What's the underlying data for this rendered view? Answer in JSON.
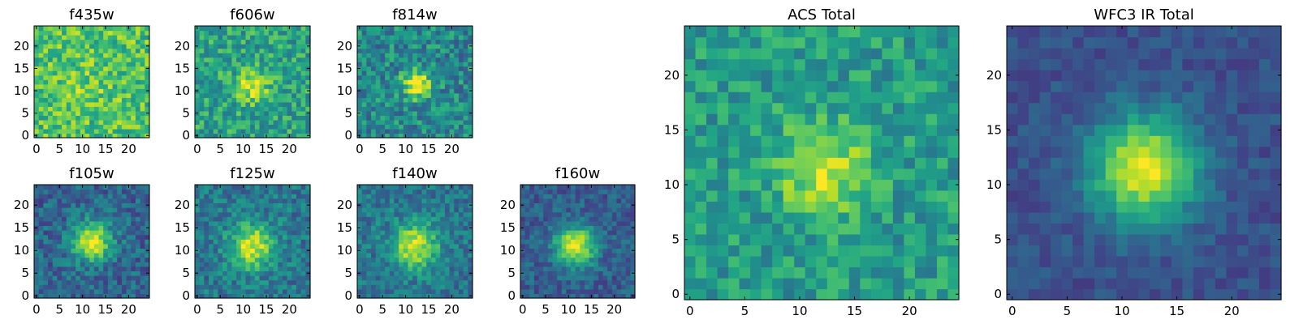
{
  "chart_data": [
    {
      "type": "heatmap",
      "id": "f435w",
      "title": "f435w",
      "xlim": [
        0,
        24
      ],
      "ylim": [
        0,
        24
      ],
      "grid_size": 25,
      "xticks": [
        0,
        5,
        10,
        15,
        20
      ],
      "yticks": [
        0,
        5,
        10,
        15,
        20
      ],
      "source": {
        "type": "gaussian",
        "center": [
          12,
          11
        ],
        "sigma": 3.2,
        "amplitude": 0.08
      },
      "background": {
        "level": 0.72,
        "noise": 0.2,
        "seed": 101
      },
      "colormap": "viridis",
      "grid": false
    },
    {
      "type": "heatmap",
      "id": "f606w",
      "title": "f606w",
      "xlim": [
        0,
        24
      ],
      "ylim": [
        0,
        24
      ],
      "grid_size": 25,
      "xticks": [
        0,
        5,
        10,
        15,
        20
      ],
      "yticks": [
        0,
        5,
        10,
        15,
        20
      ],
      "source": {
        "type": "gaussian",
        "center": [
          12,
          11
        ],
        "sigma": 2.4,
        "amplitude": 0.4
      },
      "background": {
        "level": 0.58,
        "noise": 0.2,
        "seed": 202
      },
      "colormap": "viridis",
      "grid": false
    },
    {
      "type": "heatmap",
      "id": "f814w",
      "title": "f814w",
      "xlim": [
        0,
        24
      ],
      "ylim": [
        0,
        24
      ],
      "grid_size": 25,
      "xticks": [
        0,
        5,
        10,
        15,
        20
      ],
      "yticks": [
        0,
        5,
        10,
        15,
        20
      ],
      "source": {
        "type": "gaussian",
        "center": [
          12.5,
          11.5
        ],
        "sigma": 2.2,
        "amplitude": 0.55
      },
      "background": {
        "level": 0.47,
        "noise": 0.2,
        "seed": 303
      },
      "colormap": "viridis",
      "grid": false
    },
    {
      "type": "heatmap",
      "id": "f105w",
      "title": "f105w",
      "xlim": [
        0,
        24
      ],
      "ylim": [
        0,
        24
      ],
      "grid_size": 25,
      "xticks": [
        0,
        5,
        10,
        15,
        20
      ],
      "yticks": [
        0,
        5,
        10,
        15,
        20
      ],
      "source": {
        "type": "gaussian",
        "center": [
          12,
          12
        ],
        "sigma": 3.0,
        "amplitude": 0.65
      },
      "background": {
        "level": 0.33,
        "noise": 0.16,
        "seed": 404
      },
      "colormap": "viridis",
      "grid": false
    },
    {
      "type": "heatmap",
      "id": "f125w",
      "title": "f125w",
      "xlim": [
        0,
        24
      ],
      "ylim": [
        0,
        24
      ],
      "grid_size": 25,
      "xticks": [
        0,
        5,
        10,
        15,
        20
      ],
      "yticks": [
        0,
        5,
        10,
        15,
        20
      ],
      "source": {
        "type": "gaussian",
        "center": [
          12,
          11
        ],
        "sigma": 3.4,
        "amplitude": 0.55
      },
      "background": {
        "level": 0.4,
        "noise": 0.16,
        "seed": 505
      },
      "colormap": "viridis",
      "grid": false
    },
    {
      "type": "heatmap",
      "id": "f140w",
      "title": "f140w",
      "xlim": [
        0,
        24
      ],
      "ylim": [
        0,
        24
      ],
      "grid_size": 25,
      "xticks": [
        0,
        5,
        10,
        15,
        20
      ],
      "yticks": [
        0,
        5,
        10,
        15,
        20
      ],
      "source": {
        "type": "gaussian",
        "center": [
          12,
          11
        ],
        "sigma": 3.4,
        "amplitude": 0.55
      },
      "background": {
        "level": 0.4,
        "noise": 0.15,
        "seed": 606
      },
      "colormap": "viridis",
      "grid": false
    },
    {
      "type": "heatmap",
      "id": "f160w",
      "title": "f160w",
      "xlim": [
        0,
        24
      ],
      "ylim": [
        0,
        24
      ],
      "grid_size": 25,
      "xticks": [
        0,
        5,
        10,
        15,
        20
      ],
      "yticks": [
        0,
        5,
        10,
        15,
        20
      ],
      "source": {
        "type": "gaussian",
        "center": [
          11.5,
          11
        ],
        "sigma": 3.1,
        "amplitude": 0.66
      },
      "background": {
        "level": 0.3,
        "noise": 0.13,
        "seed": 707
      },
      "colormap": "viridis",
      "grid": false
    },
    {
      "type": "heatmap",
      "id": "acs_total",
      "title": "ACS Total",
      "xlim": [
        0,
        24
      ],
      "ylim": [
        0,
        24
      ],
      "grid_size": 25,
      "xticks": [
        0,
        5,
        10,
        15,
        20
      ],
      "yticks": [
        0,
        5,
        10,
        15,
        20
      ],
      "source": {
        "type": "gaussian",
        "center": [
          12,
          11.5
        ],
        "sigma": 2.7,
        "amplitude": 0.42
      },
      "background": {
        "level": 0.55,
        "noise": 0.16,
        "seed": 808
      },
      "colormap": "viridis",
      "grid": false
    },
    {
      "type": "heatmap",
      "id": "wfc3_ir_total",
      "title": "WFC3 IR Total",
      "xlim": [
        0,
        24
      ],
      "ylim": [
        0,
        24
      ],
      "grid_size": 25,
      "xticks": [
        0,
        5,
        10,
        15,
        20
      ],
      "yticks": [
        0,
        5,
        10,
        15,
        20
      ],
      "source": {
        "type": "gaussian",
        "center": [
          12,
          11.5
        ],
        "sigma": 3.4,
        "amplitude": 0.72
      },
      "background": {
        "level": 0.25,
        "noise": 0.08,
        "seed": 909
      },
      "colormap": "viridis",
      "grid": false
    }
  ]
}
